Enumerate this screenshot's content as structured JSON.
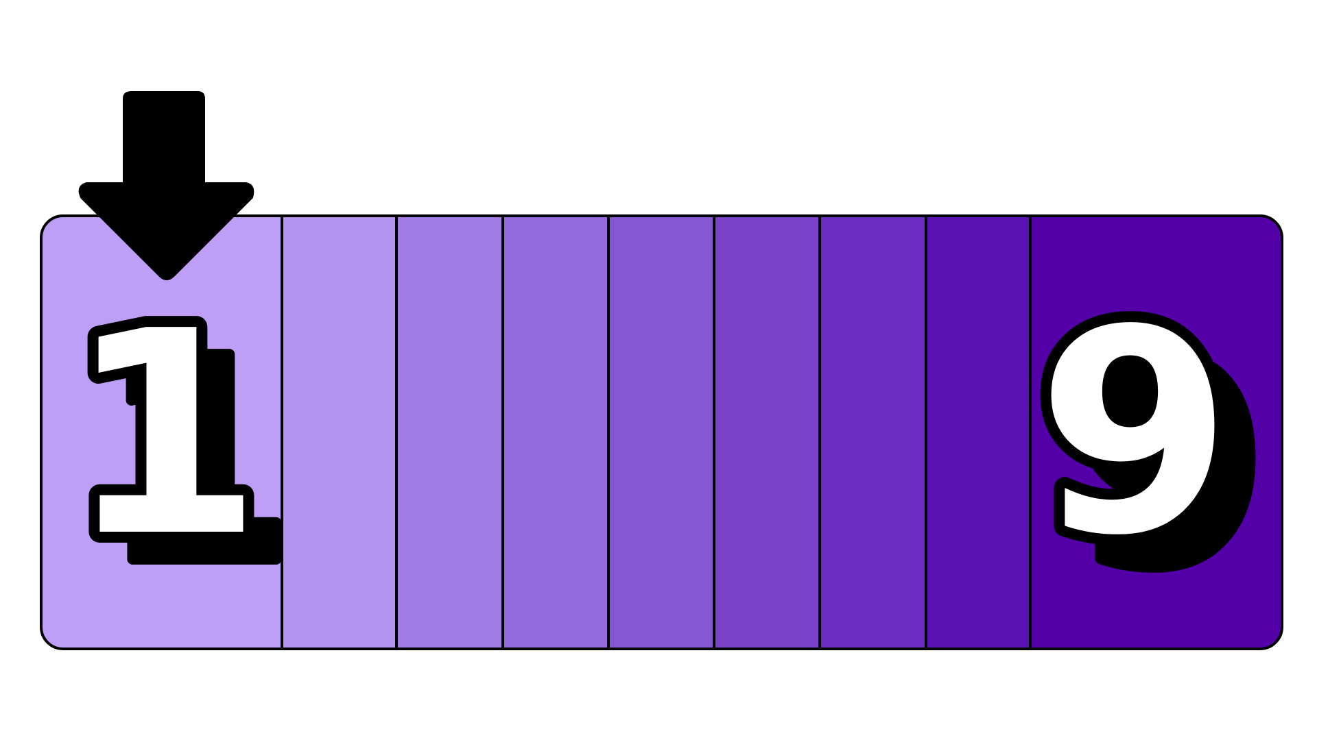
{
  "scale": {
    "low_label": "1",
    "high_label": "9",
    "segments": [
      {
        "color": "#be9ff7"
      },
      {
        "color": "#b394f2"
      },
      {
        "color": "#a17ce4"
      },
      {
        "color": "#9369dc"
      },
      {
        "color": "#8756d3"
      },
      {
        "color": "#7a43c9"
      },
      {
        "color": "#6a2ec0"
      },
      {
        "color": "#5a12b3"
      },
      {
        "color": "#5400a9"
      }
    ],
    "selected_value": 1,
    "outline_color": "#000000",
    "digit_color": "#ffffff"
  },
  "indicator": {
    "icon": "down-arrow-icon",
    "color": "#000000"
  }
}
